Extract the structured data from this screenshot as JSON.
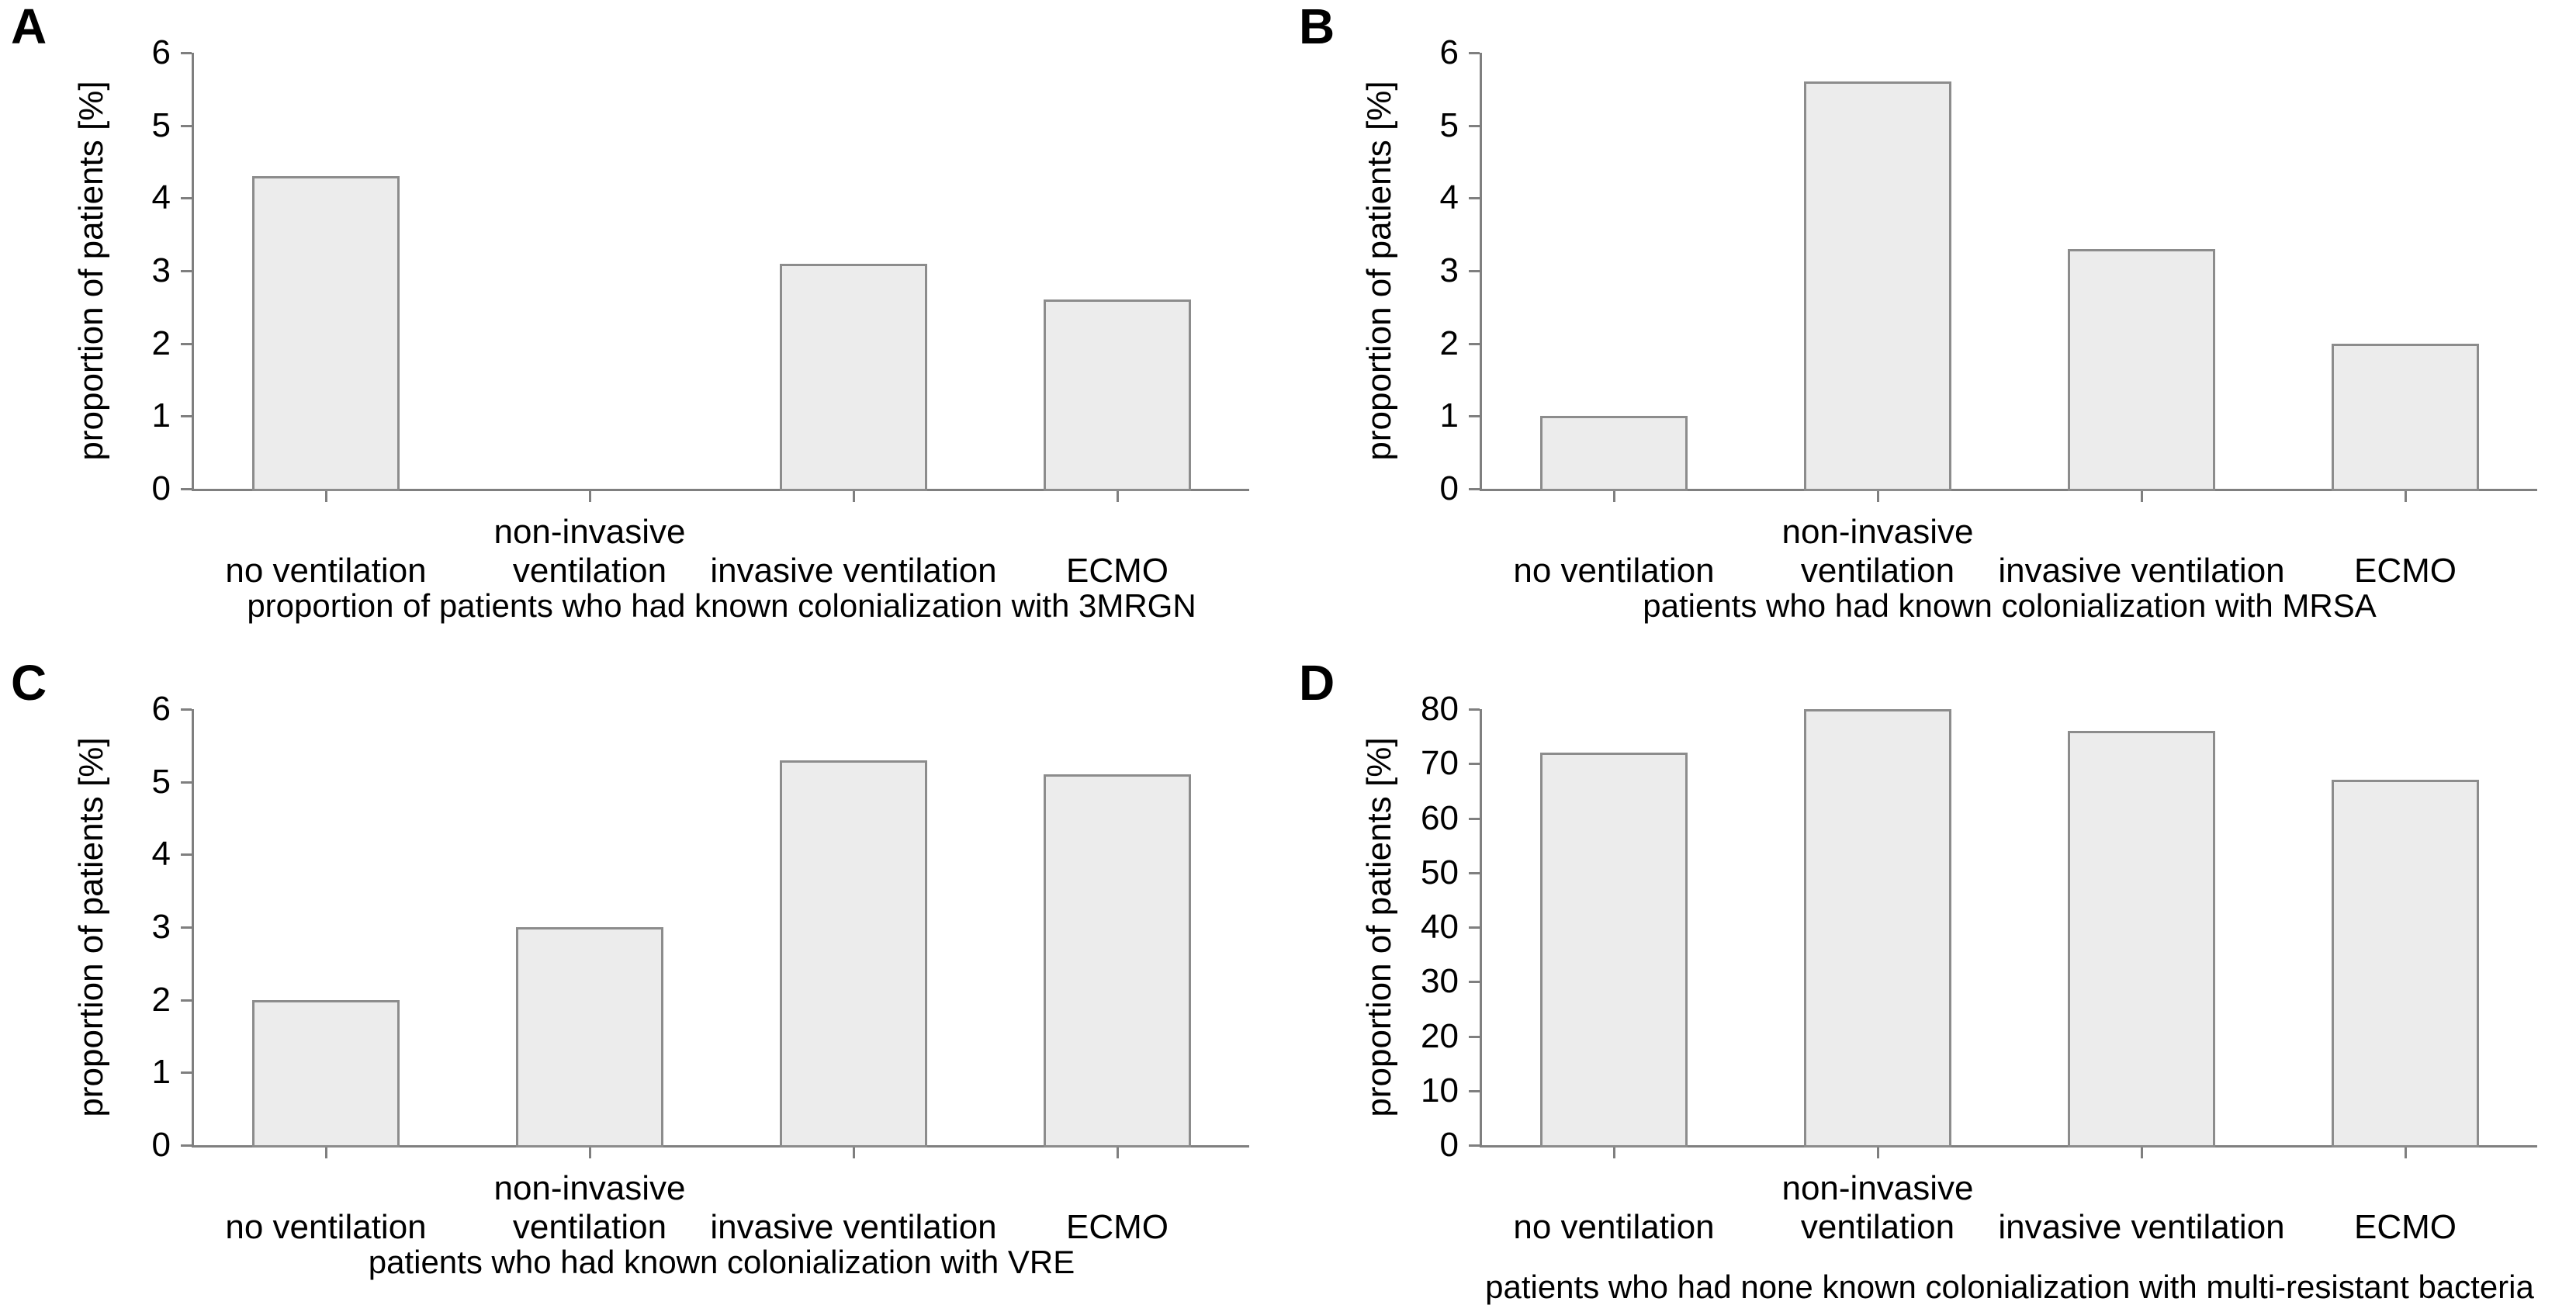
{
  "figure": {
    "background": "#ffffff",
    "panel_letters": [
      "A",
      "B",
      "C",
      "D"
    ]
  },
  "chart_data": [
    {
      "type": "bar",
      "panel_letter": "A",
      "title": "",
      "xlabel": "proportion of patients who had known colonialization with 3MRGN",
      "ylabel": "proportion of patients [%]",
      "categories": [
        "no ventilation",
        "non-invasive\nventilation",
        "invasive ventilation",
        "ECMO"
      ],
      "values": [
        4.3,
        0,
        3.1,
        2.6
      ],
      "ylim": [
        0,
        6
      ],
      "yticks": [
        0,
        1,
        2,
        3,
        4,
        5,
        6
      ],
      "grid": false,
      "legend": null,
      "bar_fill": "#ececec",
      "bar_border": "#8c8c8c",
      "axis_color": "#7f7f7f",
      "text_color": "#000000"
    },
    {
      "type": "bar",
      "panel_letter": "B",
      "title": "",
      "xlabel": "patients who had known colonialization with MRSA",
      "ylabel": "proportion of patients [%]",
      "categories": [
        "no ventilation",
        "non-invasive\nventilation",
        "invasive ventilation",
        "ECMO"
      ],
      "values": [
        1.0,
        5.6,
        3.3,
        2.0
      ],
      "ylim": [
        0,
        6
      ],
      "yticks": [
        0,
        1,
        2,
        3,
        4,
        5,
        6
      ],
      "grid": false,
      "legend": null,
      "bar_fill": "#ececec",
      "bar_border": "#8c8c8c",
      "axis_color": "#7f7f7f",
      "text_color": "#000000"
    },
    {
      "type": "bar",
      "panel_letter": "C",
      "title": "",
      "xlabel": "patients who had known colonialization with VRE",
      "ylabel": "proportion of patients [%]",
      "categories": [
        "no ventilation",
        "non-invasive\nventilation",
        "invasive ventilation",
        "ECMO"
      ],
      "values": [
        2.0,
        3.0,
        5.3,
        5.1
      ],
      "ylim": [
        0,
        6
      ],
      "yticks": [
        0,
        1,
        2,
        3,
        4,
        5,
        6
      ],
      "grid": false,
      "legend": null,
      "bar_fill": "#ececec",
      "bar_border": "#8c8c8c",
      "axis_color": "#7f7f7f",
      "text_color": "#000000"
    },
    {
      "type": "bar",
      "panel_letter": "D",
      "title": "",
      "xlabel": "patients who had none known colonialization with multi-resistant bacteria",
      "ylabel": "proportion of patients [%]",
      "categories": [
        "no ventilation",
        "non-invasive\nventilation",
        "invasive ventilation",
        "ECMO"
      ],
      "values": [
        72,
        80,
        76,
        67
      ],
      "ylim": [
        0,
        80
      ],
      "yticks": [
        0,
        10,
        20,
        30,
        40,
        50,
        60,
        70,
        80
      ],
      "grid": false,
      "legend": null,
      "bar_fill": "#ececec",
      "bar_border": "#8c8c8c",
      "axis_color": "#7f7f7f",
      "text_color": "#000000"
    }
  ]
}
